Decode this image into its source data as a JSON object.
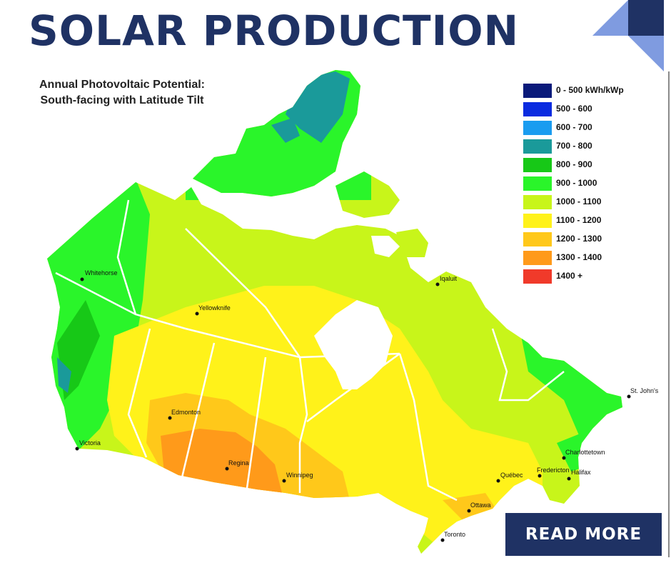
{
  "header": {
    "title": "SOLAR PRODUCTION"
  },
  "map": {
    "title_line1": "Annual Photovoltaic Potential:",
    "title_line2": "South-facing with Latitude Tilt",
    "legend": [
      {
        "label": "0 - 500 kWh/kWp",
        "color": "#0a1a7a"
      },
      {
        "label": "500 - 600",
        "color": "#0a2be0"
      },
      {
        "label": "600 - 700",
        "color": "#1a9cf0"
      },
      {
        "label": "700 - 800",
        "color": "#1a9a9a"
      },
      {
        "label": "800 - 900",
        "color": "#17c817"
      },
      {
        "label": "900 - 1000",
        "color": "#2af52a"
      },
      {
        "label": "1000 - 1100",
        "color": "#c8f51a"
      },
      {
        "label": "1100 - 1200",
        "color": "#fff21a"
      },
      {
        "label": "1200 - 1300",
        "color": "#ffc81a"
      },
      {
        "label": "1300 - 1400",
        "color": "#ff9a1a"
      },
      {
        "label": "1400 +",
        "color": "#f03a2a"
      }
    ],
    "cities": [
      {
        "id": "whitehorse",
        "name": "Whitehorse"
      },
      {
        "id": "yellowknife",
        "name": "Yellowknife"
      },
      {
        "id": "iqaluit",
        "name": "Iqaluit"
      },
      {
        "id": "edmonton",
        "name": "Edmonton"
      },
      {
        "id": "victoria",
        "name": "Victoria"
      },
      {
        "id": "regina",
        "name": "Regina"
      },
      {
        "id": "winnipeg",
        "name": "Winnipeg"
      },
      {
        "id": "quebec",
        "name": "Québec"
      },
      {
        "id": "ottawa",
        "name": "Ottawa"
      },
      {
        "id": "toronto",
        "name": "Toronto"
      },
      {
        "id": "st-johns",
        "name": "St. John's"
      },
      {
        "id": "charlottetown",
        "name": "Charlottetown"
      },
      {
        "id": "fredericton",
        "name": "Fredericton"
      },
      {
        "id": "halifax",
        "name": "Halifax"
      }
    ]
  },
  "cta": {
    "label": "READ MORE"
  }
}
